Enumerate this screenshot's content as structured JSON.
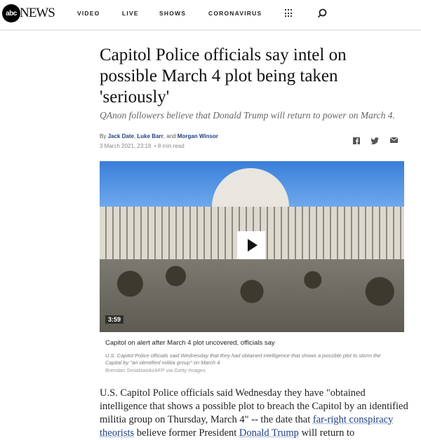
{
  "header": {
    "logo": "abc NEWS",
    "logo_mark": "abc",
    "logo_text": "NEWS",
    "nav": [
      "VIDEO",
      "LIVE",
      "SHOWS",
      "CORONAVIRUS"
    ]
  },
  "article": {
    "headline": "Capitol Police officials say intel on possible March 4 plot being taken 'seriously'",
    "subhead": "QAnon followers believe that Donald Trump will return to power on March 4.",
    "by_prefix": "By",
    "authors": [
      "Jack Date",
      "Luke Barr",
      "Morgan Winsor"
    ],
    "and": "and",
    "date": "3 March 2021, 23:18",
    "read_time": "8 min read",
    "share": [
      "facebook-icon",
      "twitter-icon",
      "email-icon"
    ]
  },
  "video": {
    "duration": "3:59",
    "title": "Capitol on alert after March 4 plot uncovered, officials say",
    "description": "U.S. Capitol Police officials said Wednesday that they had obtained intelligence that shows a possible plot to storm the Capital by \"an identified militia group\" on March 4.",
    "credit": "Brendan Smialowski/AFP via Getty Images"
  },
  "body": {
    "p1_start": "U.S. Capitol Police officials said Wednesday they have \"obtained intelligence that shows a possible plot to breach the Capitol by an identified militia group on Thursday, March 4\" -- the date that ",
    "link1": "far-right conspiracy theorists",
    "p1_mid": " believe former President ",
    "link2": "Donald Trump",
    "p1_end": " will return to"
  }
}
